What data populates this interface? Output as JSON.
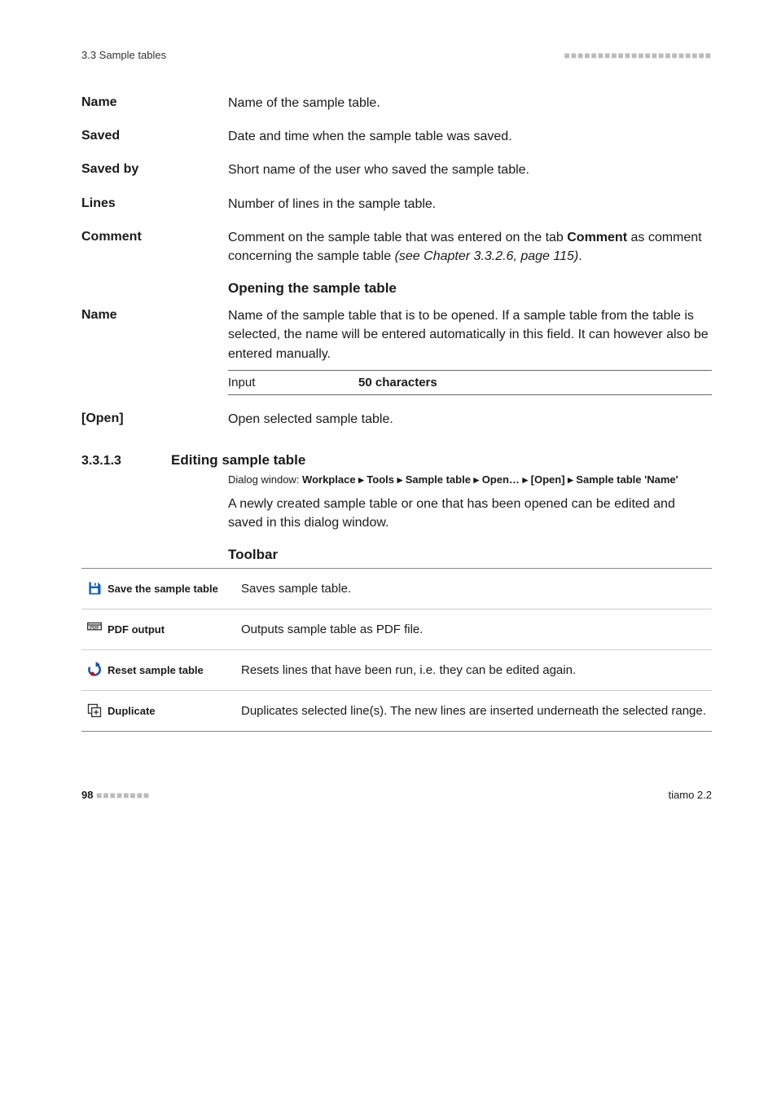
{
  "header": {
    "crumb": "3.3 Sample tables",
    "dashes": "■■■■■■■■■■■■■■■■■■■■■■"
  },
  "defs": [
    {
      "label": "Name",
      "body": "Name of the sample table."
    },
    {
      "label": "Saved",
      "body": "Date and time when the sample table was saved."
    },
    {
      "label": "Saved by",
      "body": "Short name of the user who saved the sample table."
    },
    {
      "label": "Lines",
      "body": "Number of lines in the sample table."
    }
  ],
  "comment": {
    "label": "Comment",
    "body_pre": "Comment on the sample table that was entered on the tab ",
    "body_bold": "Comment",
    "body_mid": " as comment concerning the sample table ",
    "body_italic": "(see Chapter 3.3.2.6, page 115)",
    "body_post": "."
  },
  "opening": {
    "heading": "Opening the sample table",
    "name_label": "Name",
    "name_body": "Name of the sample table that is to be opened. If a sample table from the table is selected, the name will be entered automatically in this field. It can however also be entered manually.",
    "input_label": "Input",
    "input_value": "50 characters",
    "open_label": "[Open]",
    "open_body": "Open selected sample table."
  },
  "section": {
    "num": "3.3.1.3",
    "title": "Editing sample table",
    "dialog_lead": "Dialog window: ",
    "dialog_path": "Workplace ▸ Tools ▸ Sample table ▸ Open… ▸ [Open] ▸ Sample table 'Name'",
    "paragraph": "A newly created sample table or one that has been opened can be edited and saved in this dialog window.",
    "toolbar_heading": "Toolbar"
  },
  "toolbar": [
    {
      "icon": "save",
      "label": "Save the sample table",
      "desc": "Saves sample table."
    },
    {
      "icon": "pdf",
      "label": "PDF output",
      "desc": "Outputs sample table as PDF file."
    },
    {
      "icon": "reset",
      "label": "Reset sample table",
      "desc": "Resets lines that have been run, i.e. they can be edited again."
    },
    {
      "icon": "duplicate",
      "label": "Duplicate",
      "desc": "Duplicates selected line(s). The new lines are inserted underneath the selected range."
    }
  ],
  "footer": {
    "page": "98",
    "dashes": "■■■■■■■■",
    "product": "tiamo 2.2"
  },
  "colors": {
    "icon_save": "#1060c0",
    "icon_pdf_stroke": "#333333",
    "icon_reset_red": "#d01010",
    "icon_reset_blue": "#1050b0",
    "icon_dup": "#333333"
  }
}
